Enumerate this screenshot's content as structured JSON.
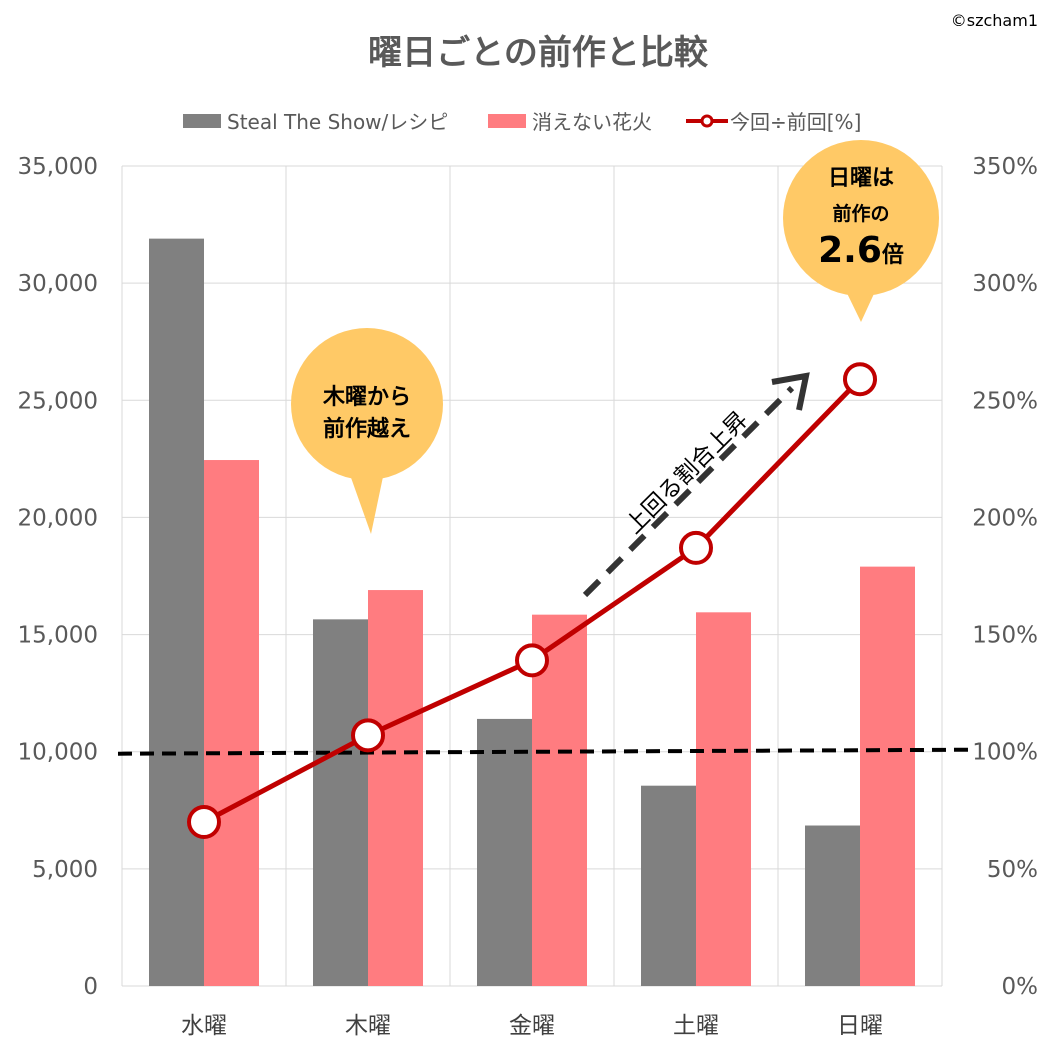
{
  "chart_data": {
    "type": "bar",
    "title": "曜日ごとの前作と比較",
    "credit": "©szcham1",
    "categories": [
      "水曜",
      "木曜",
      "金曜",
      "土曜",
      "日曜"
    ],
    "series": [
      {
        "name": "Steal The Show/レシピ",
        "type": "bar",
        "axis": "left",
        "color": "#808080",
        "values": [
          31900,
          15650,
          11400,
          8550,
          6850
        ]
      },
      {
        "name": "消えない花火",
        "type": "bar",
        "axis": "left",
        "color": "#FF7C80",
        "values": [
          22450,
          16900,
          15850,
          15950,
          17900
        ]
      },
      {
        "name": "今回÷前回[%]",
        "type": "line",
        "axis": "right",
        "color": "#C00000",
        "values": [
          70,
          107,
          139,
          187,
          259
        ]
      }
    ],
    "y_left": {
      "min": 0,
      "max": 35000,
      "ticks": [
        "0",
        "5,000",
        "10,000",
        "15,000",
        "20,000",
        "25,000",
        "30,000",
        "35,000"
      ]
    },
    "y_right": {
      "min": 0,
      "max": 350,
      "ticks": [
        "0%",
        "50%",
        "100%",
        "150%",
        "200%",
        "250%",
        "300%",
        "350%"
      ]
    },
    "reference_line": {
      "value": 100,
      "axis": "right",
      "style": "dashed",
      "color": "#000000"
    },
    "grid": true,
    "legend_position": "top",
    "annotations": {
      "thursday_callout": [
        "木曜から",
        "前作越え"
      ],
      "sunday_callout": {
        "line1": "日曜は",
        "line2": "前作の",
        "value": "2.6",
        "suffix": "倍"
      },
      "trend_label": "上回る割合上昇"
    }
  }
}
